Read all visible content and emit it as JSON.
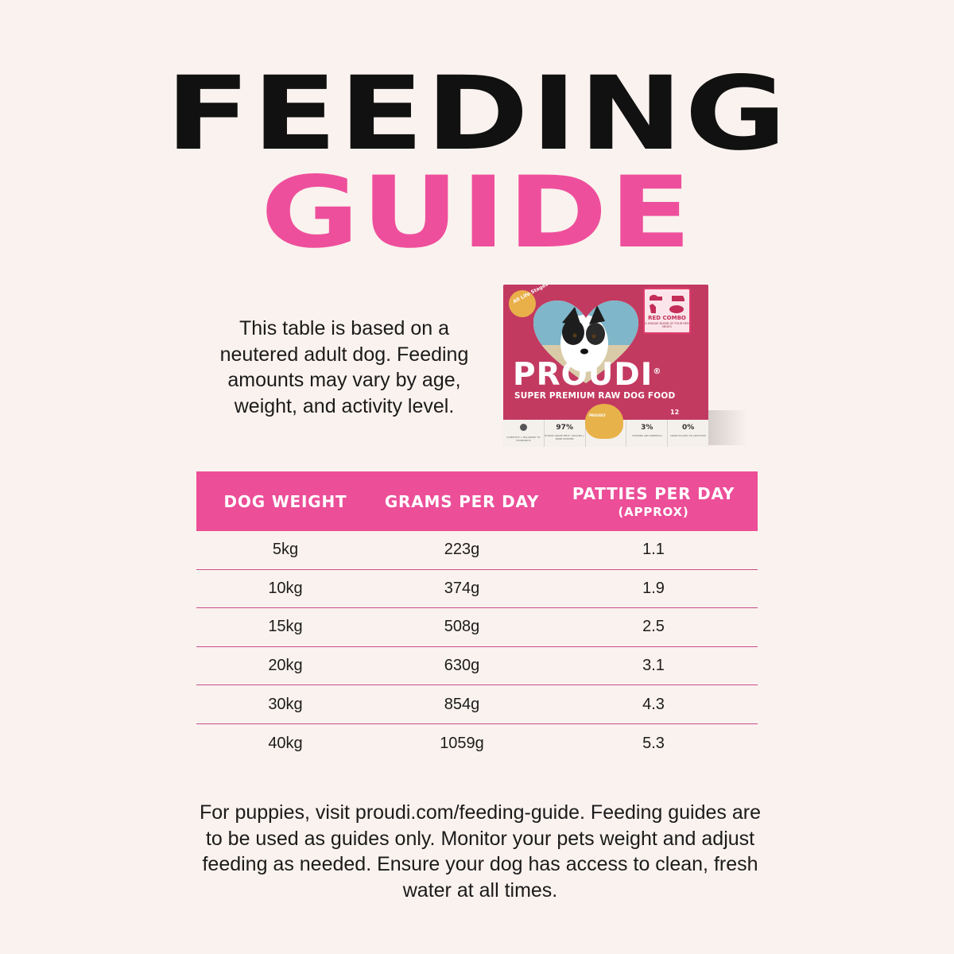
{
  "title": {
    "line1": "FEEDING",
    "line2": "GUIDE"
  },
  "intro": "This table is based on a neutered adult dog. Feeding amounts may vary by age, weight, and activity level.",
  "product": {
    "badge": "All Life Stages",
    "variant": "RED COMBO",
    "variant_sub": "A UNIQUE BLEND OF FOUR RED MEATS",
    "brand": "PROUDI",
    "brand_mark": "®",
    "tagline": "SUPER PREMIUM RAW DOG FOOD",
    "count": "12",
    "origin_badge": "PROUDLY",
    "stats": [
      {
        "value": "",
        "label": "COMPLETE + BALANCED TO STANDARDS"
      },
      {
        "value": "97%",
        "label": "HUMAN GRADE MEAT, ORGANS + BONE POWDER"
      },
      {
        "value": "",
        "label": ""
      },
      {
        "value": "3%",
        "label": "VITAMINS AND MINERALS"
      },
      {
        "value": "0%",
        "label": "GRAIN FILLERS OR ADDITIVES"
      }
    ],
    "colors": {
      "box": "#c8355e",
      "accent": "#e8b24a"
    }
  },
  "table": {
    "headers": {
      "weight": "DOG WEIGHT",
      "grams": "GRAMS PER DAY",
      "patties": "PATTIES PER DAY",
      "patties_sub": "(APPROX)"
    },
    "rows": [
      {
        "weight": "5kg",
        "grams": "223g",
        "patties": "1.1"
      },
      {
        "weight": "10kg",
        "grams": "374g",
        "patties": "1.9"
      },
      {
        "weight": "15kg",
        "grams": "508g",
        "patties": "2.5"
      },
      {
        "weight": "20kg",
        "grams": "630g",
        "patties": "3.1"
      },
      {
        "weight": "30kg",
        "grams": "854g",
        "patties": "4.3"
      },
      {
        "weight": "40kg",
        "grams": "1059g",
        "patties": "5.3"
      }
    ],
    "colors": {
      "header_bg": "#ec4e98",
      "divider": "#c94c8c"
    }
  },
  "footer": "For puppies, visit proudi.com/feeding-guide. Feeding guides are to be used as guides only. Monitor your pets weight and adjust feeding as needed. Ensure your dog has access to clean, fresh water at all times.",
  "colors": {
    "background": "#faf2ee",
    "title_black": "#111111",
    "title_pink": "#ee4f9c"
  }
}
